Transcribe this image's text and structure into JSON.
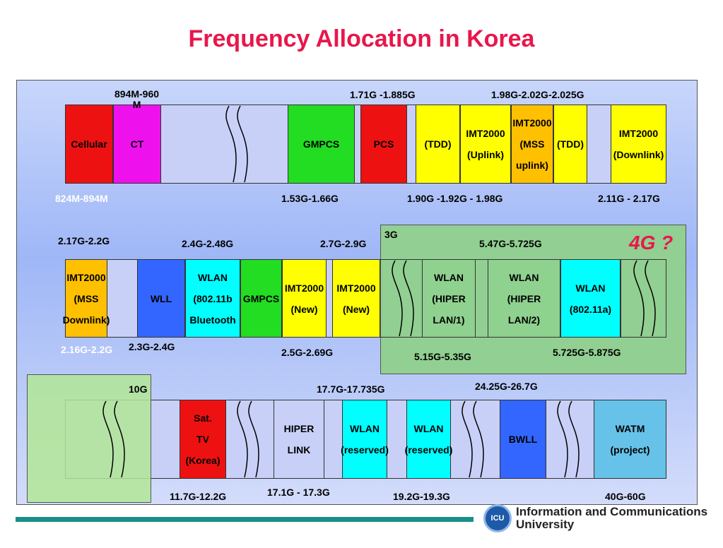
{
  "title": "Frequency Allocation in Korea",
  "highlight_label": "4G ?",
  "region_labels": {
    "g3": "3G",
    "g10": "10G"
  },
  "row1": {
    "blocks": [
      {
        "id": "cellular",
        "text": "Cellular",
        "color": "#ee1111"
      },
      {
        "id": "ct",
        "text": "CT",
        "color": "#ee11ee"
      },
      {
        "id": "gmpcs",
        "text": "GMPCS",
        "color": "#22dd22"
      },
      {
        "id": "pcs",
        "text": "PCS",
        "color": "#ee1111"
      },
      {
        "id": "tdd1",
        "text": "(TDD)",
        "color": "#ffff00"
      },
      {
        "id": "imt-uplink",
        "text": "IMT2000\n(Uplink)",
        "color": "#ffff00"
      },
      {
        "id": "imt-mss-uplink",
        "text": "IMT2000\n(MSS\nuplink)",
        "color": "#ffc000"
      },
      {
        "id": "tdd2",
        "text": "(TDD)",
        "color": "#ffff00"
      },
      {
        "id": "imt-downlink",
        "text": "IMT2000\n(Downlink)",
        "color": "#ffff00"
      }
    ],
    "labels": [
      "894M-960\nM",
      "1.71G -1.885G",
      "1.98G-2.02G-2.025G",
      "824M-894M",
      "1.53G-1.66G",
      "1.90G -1.92G - 1.98G",
      "2.11G - 2.17G"
    ]
  },
  "row2": {
    "blocks": [
      {
        "id": "imt-mss-downlink",
        "text": "IMT2000\n(MSS\nDownlink)",
        "color": "#ffc000"
      },
      {
        "id": "wll",
        "text": "WLL",
        "color": "#3366ff"
      },
      {
        "id": "wlan-bt",
        "text": "WLAN\n(802.11b\nBluetooth",
        "color": "#00ffff"
      },
      {
        "id": "gmpcs2",
        "text": "GMPCS",
        "color": "#22dd22"
      },
      {
        "id": "imt-new1",
        "text": "IMT2000\n(New)",
        "color": "#ffff00"
      },
      {
        "id": "imt-new2",
        "text": "IMT2000\n(New)",
        "color": "#ffff00"
      },
      {
        "id": "wlan-hiper1",
        "text": "WLAN\n(HIPER\nLAN/1)",
        "color": "#8fd18f"
      },
      {
        "id": "wlan-hiper2",
        "text": "WLAN\n(HIPER\nLAN/2)",
        "color": "#8fd18f"
      },
      {
        "id": "wlan-11a",
        "text": "WLAN\n(802.11a)",
        "color": "#00ffff"
      }
    ],
    "labels": [
      "2.17G-2.2G",
      "2.4G-2.48G",
      "2.7G-2.9G",
      "5.47G-5.725G",
      "2.16G-2.2G",
      "2.3G-2.4G",
      "2.5G-2.69G",
      "5.15G-5.35G",
      "5.725G-5.875G"
    ]
  },
  "row3": {
    "blocks": [
      {
        "id": "sat-tv",
        "text": "Sat.\nTV\n(Korea)",
        "color": "#ee1111"
      },
      {
        "id": "hiper-link",
        "text": "HIPER\nLINK",
        "color": "#c8d0f8"
      },
      {
        "id": "wlan-res1",
        "text": "WLAN\n(reserved)",
        "color": "#00ffff"
      },
      {
        "id": "wlan-res2",
        "text": "WLAN\n(reserved)",
        "color": "#00ffff"
      },
      {
        "id": "bwll",
        "text": "BWLL",
        "color": "#3366ff"
      },
      {
        "id": "watm",
        "text": "WATM\n(project)",
        "color": "#66c2e8"
      }
    ],
    "labels": [
      "17.7G-17.735G",
      "24.25G-26.7G",
      "11.7G-12.2G",
      "17.1G - 17.3G",
      "19.2G-19.3G",
      "40G-60G"
    ]
  },
  "footer": {
    "logo_text": "ICU",
    "org_line1": "Information and Communications",
    "org_line2": "University"
  },
  "colors": {
    "title": "#e8174b",
    "bar": "#1a8f8a"
  }
}
